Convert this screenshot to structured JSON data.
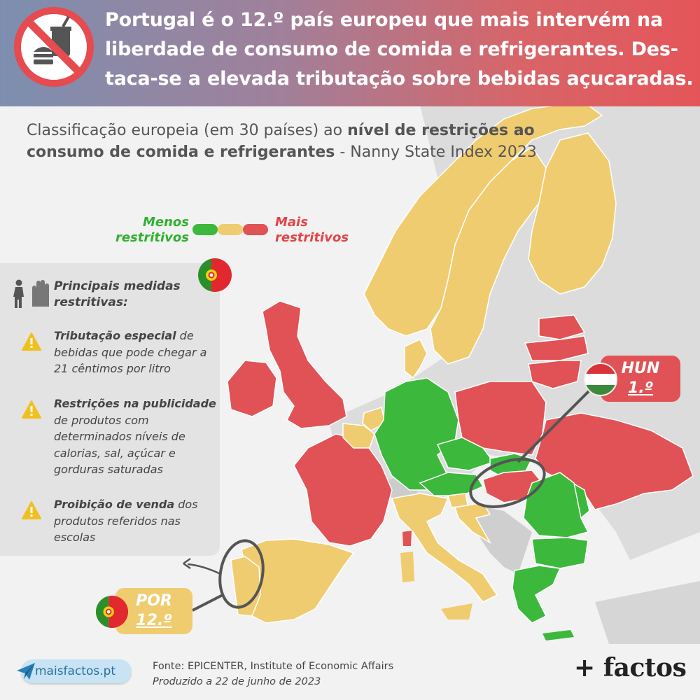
{
  "header": {
    "title": "Portugal é o 12.º país europeu que mais intervém na liberdade de consumo de comida e refrigerantes. Des-taca-se a elevada tributação sobre bebidas açucaradas.",
    "icon": "no-fast-food-icon"
  },
  "subtitle": {
    "prefix": "Classificação europeia (em 30 países) ao ",
    "bold": "nível de restrições ao consumo de comida e refrigerantes",
    "suffix": " - Nanny State Index 2023"
  },
  "legend": {
    "less": "Menos restritivos",
    "more": "Mais restritivos",
    "colors": {
      "green": "#3cb83c",
      "yellow": "#f0cc70",
      "red": "#e05255"
    }
  },
  "measures": {
    "heading": "Principais medidas restritivas:",
    "items": [
      {
        "bold": "Tributação especial",
        "text": " de bebidas que pode chegar a 21 cêntimos por litro"
      },
      {
        "bold": "Restrições na publicidade",
        "text": " de produtos com determinados níveis de calorias, sal, açúcar e gorduras saturadas"
      },
      {
        "bold": "Proibição de venda",
        "text": " dos produtos referidos nas escolas"
      }
    ]
  },
  "callouts": {
    "hungary": {
      "code": "HUN",
      "rank": "1.º"
    },
    "portugal": {
      "code": "POR",
      "rank": "12.º"
    }
  },
  "footer": {
    "source": "Fonte: EPICENTER, Institute of Economic Affairs",
    "produced": "Produzido a 22 de junho de 2023",
    "site": "maisfactos.pt",
    "brand": "+ factos"
  },
  "map": {
    "country_categories": {
      "most_restrictive": [
        "Ireland",
        "United Kingdom",
        "France",
        "Poland",
        "Lithuania",
        "Latvia",
        "Estonia",
        "Hungary",
        "Ukraine"
      ],
      "middle": [
        "Portugal",
        "Spain",
        "Italy",
        "Belgium",
        "Netherlands",
        "Denmark",
        "Sweden",
        "Norway",
        "Finland",
        "Croatia",
        "Slovenia"
      ],
      "least_restrictive": [
        "Germany",
        "Czechia",
        "Slovakia",
        "Austria",
        "Romania",
        "Bulgaria",
        "Greece",
        "Moldova",
        "Luxembourg"
      ]
    }
  }
}
